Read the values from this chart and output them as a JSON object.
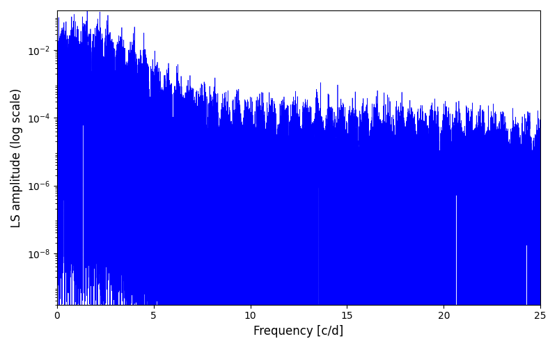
{
  "xlabel": "Frequency [c/d]",
  "ylabel": "LS amplitude (log scale)",
  "xlim": [
    0,
    25
  ],
  "ylim": [
    3e-10,
    0.15
  ],
  "line_color": "#0000FF",
  "line_width": 0.5,
  "background_color": "#ffffff",
  "figsize": [
    8.0,
    5.0
  ],
  "dpi": 100,
  "seed": 12345,
  "yticks": [
    1e-08,
    1e-06,
    0.0001,
    0.01
  ],
  "xlabel_fontsize": 12,
  "ylabel_fontsize": 12
}
